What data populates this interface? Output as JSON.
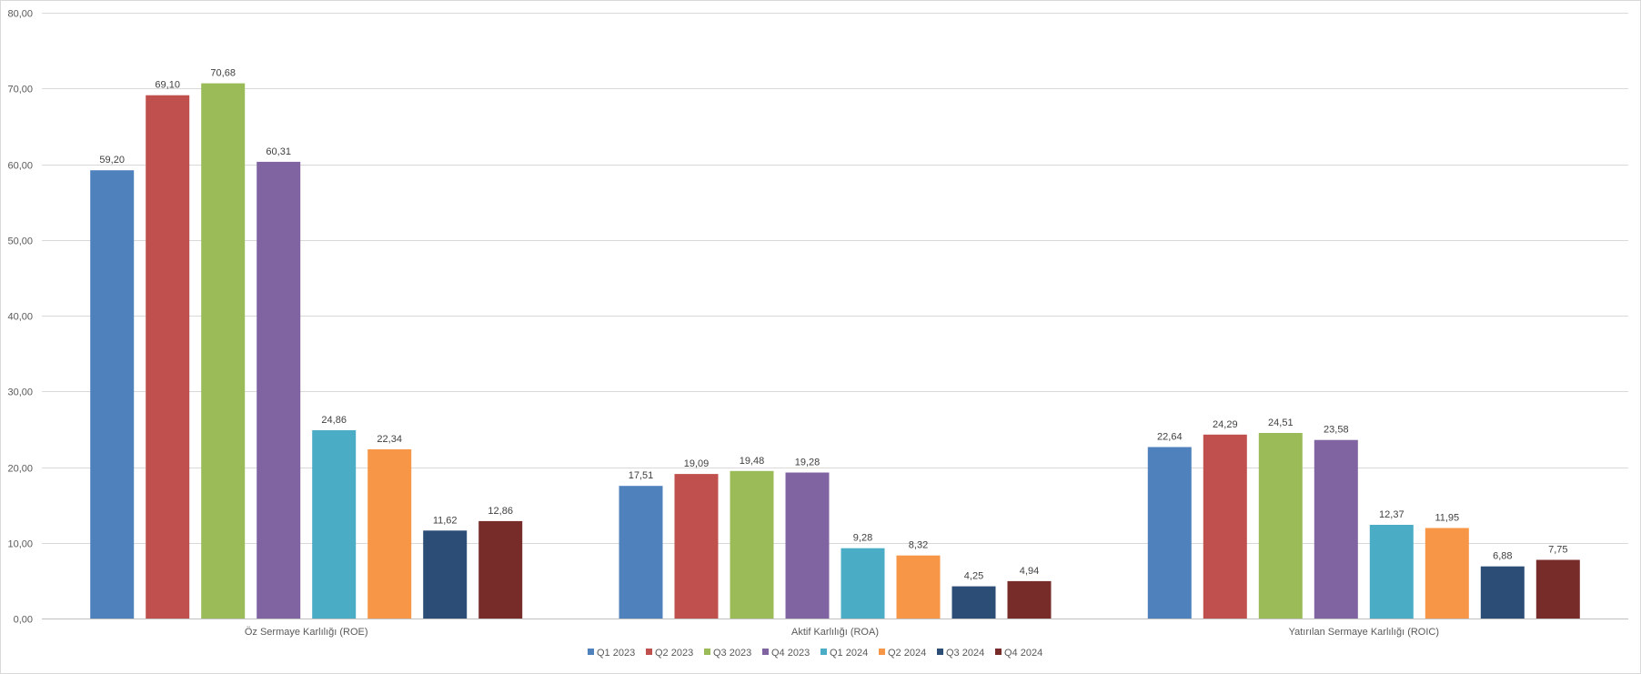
{
  "chart_data": {
    "type": "bar",
    "title": "",
    "xlabel": "",
    "ylabel": "",
    "ylim": [
      0,
      80
    ],
    "yticks": [
      "0,00",
      "10,00",
      "20,00",
      "30,00",
      "40,00",
      "50,00",
      "60,00",
      "70,00",
      "80,00"
    ],
    "grid": true,
    "legend_position": "bottom",
    "categories": [
      "Öz Sermaye Karlılığı (ROE)",
      "Aktif Karlılığı (ROA)",
      "Yatırılan Sermaye Karlılığı (ROIC)"
    ],
    "series": [
      {
        "name": "Q1 2023",
        "color": "#4f81bd",
        "values": [
          59.2,
          17.51,
          22.64
        ],
        "labels": [
          "59,20",
          "17,51",
          "22,64"
        ]
      },
      {
        "name": "Q2 2023",
        "color": "#c0504d",
        "values": [
          69.1,
          19.09,
          24.29
        ],
        "labels": [
          "69,10",
          "19,09",
          "24,29"
        ]
      },
      {
        "name": "Q3 2023",
        "color": "#9bbb59",
        "values": [
          70.68,
          19.48,
          24.51
        ],
        "labels": [
          "70,68",
          "19,48",
          "24,51"
        ]
      },
      {
        "name": "Q4 2023",
        "color": "#8064a2",
        "values": [
          60.31,
          19.28,
          23.58
        ],
        "labels": [
          "60,31",
          "19,28",
          "23,58"
        ]
      },
      {
        "name": "Q1 2024",
        "color": "#4bacc6",
        "values": [
          24.86,
          9.28,
          12.37
        ],
        "labels": [
          "24,86",
          "9,28",
          "12,37"
        ]
      },
      {
        "name": "Q2 2024",
        "color": "#f79646",
        "values": [
          22.34,
          8.32,
          11.95
        ],
        "labels": [
          "22,34",
          "8,32",
          "11,95"
        ]
      },
      {
        "name": "Q3 2024",
        "color": "#2c4d75",
        "values": [
          11.62,
          4.25,
          6.88
        ],
        "labels": [
          "11,62",
          "4,25",
          "6,88"
        ]
      },
      {
        "name": "Q4 2024",
        "color": "#772c2a",
        "values": [
          12.86,
          4.94,
          7.75
        ],
        "labels": [
          "12,86",
          "4,94",
          "7,75"
        ]
      }
    ]
  }
}
